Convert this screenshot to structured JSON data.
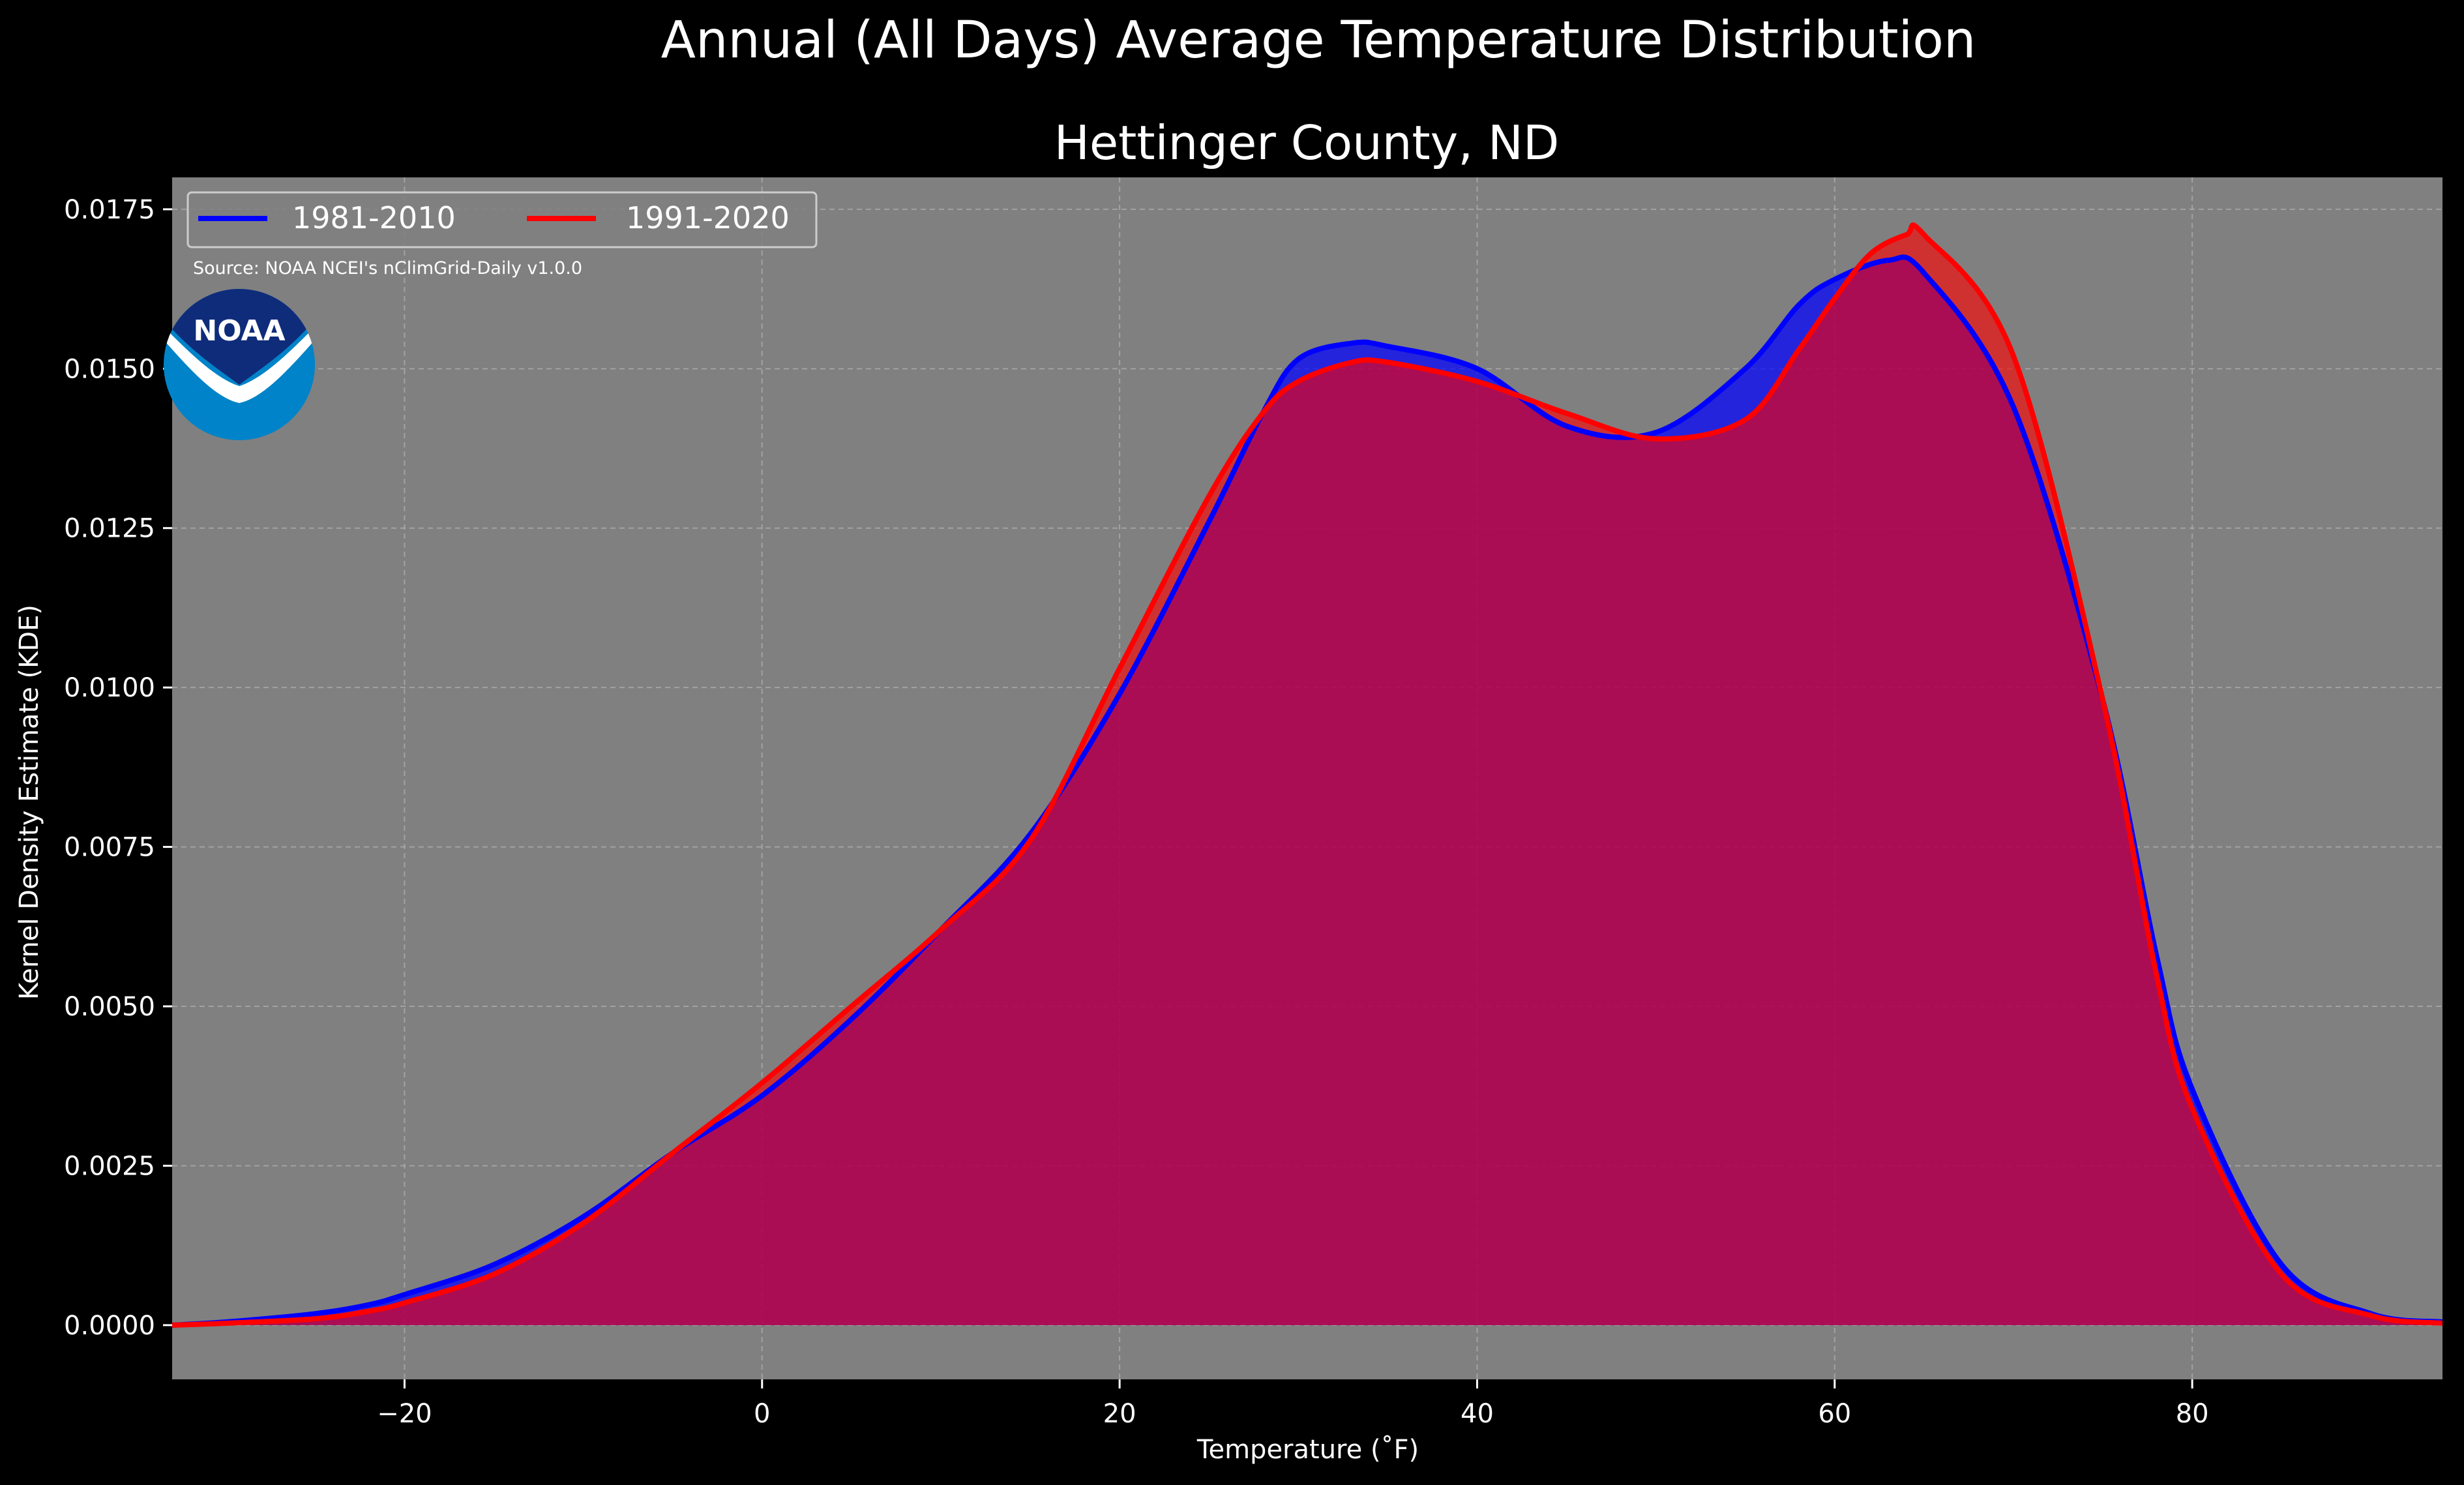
{
  "suptitle": "Annual (All Days) Average Temperature Distribution",
  "source_note": "Source: NOAA NCEI's nClimGrid-Daily v1.0.0",
  "logo": {
    "icon": "noaa-logo",
    "text": "NOAA"
  },
  "colors": {
    "background": "#000000",
    "axes_bg": "#808080",
    "grid": "#b0b0b0",
    "series_1981": "#0000ff",
    "series_1991": "#ff0000",
    "overlap": "#9e1e5e",
    "logo_dark": "#0f2c7a",
    "logo_light": "#0083c8"
  },
  "chart_data": {
    "type": "area",
    "title": "Hettinger County, ND",
    "xlabel": "Temperature ($^\\circ$F)",
    "xlabel_display": "Temperature (˚F)",
    "ylabel": "Kernel Density Estimate (KDE)",
    "xlim": [
      -33,
      94
    ],
    "ylim": [
      -0.00085,
      0.018
    ],
    "xticks": [
      -20,
      0,
      20,
      40,
      60,
      80
    ],
    "xtick_labels": [
      "−20",
      "0",
      "20",
      "40",
      "60",
      "80"
    ],
    "yticks": [
      0.0,
      0.0025,
      0.005,
      0.0075,
      0.01,
      0.0125,
      0.015,
      0.0175
    ],
    "ytick_labels": [
      "0.0000",
      "0.0025",
      "0.0050",
      "0.0075",
      "0.0100",
      "0.0125",
      "0.0150",
      "0.0175"
    ],
    "grid": true,
    "legend_position": "top-left",
    "series": [
      {
        "name": "1981-2010",
        "color": "#0000ff",
        "x": [
          -33,
          -30,
          -25,
          -22,
          -20,
          -15,
          -10,
          -5,
          0,
          5,
          10,
          15,
          20,
          25,
          28,
          30,
          33,
          35,
          40,
          45,
          50,
          55,
          58,
          60,
          63,
          65,
          70,
          75,
          78,
          80,
          85,
          90,
          94
        ],
        "y": [
          0.0,
          5e-05,
          0.00018,
          0.00032,
          0.00048,
          0.00095,
          0.0017,
          0.0027,
          0.0036,
          0.0048,
          0.0062,
          0.0077,
          0.0099,
          0.0126,
          0.0143,
          0.01515,
          0.0154,
          0.01535,
          0.015,
          0.0141,
          0.014,
          0.015,
          0.016,
          0.0164,
          0.0167,
          0.0165,
          0.0144,
          0.0098,
          0.0058,
          0.0037,
          0.00095,
          0.00018,
          5e-05
        ]
      },
      {
        "name": "1991-2020",
        "color": "#ff0000",
        "x": [
          -33,
          -30,
          -25,
          -22,
          -20,
          -15,
          -10,
          -5,
          0,
          5,
          10,
          15,
          20,
          25,
          28,
          30,
          33,
          35,
          40,
          45,
          50,
          55,
          58,
          60,
          62,
          64,
          65,
          70,
          75,
          78,
          80,
          85,
          90,
          94
        ],
        "y": [
          0.0,
          3e-05,
          0.0001,
          0.00022,
          0.00035,
          0.0008,
          0.0016,
          0.0027,
          0.0038,
          0.005,
          0.0062,
          0.0076,
          0.0103,
          0.013,
          0.0143,
          0.0148,
          0.0151,
          0.0151,
          0.0148,
          0.0143,
          0.0139,
          0.0142,
          0.0153,
          0.0161,
          0.0168,
          0.0171,
          0.0171,
          0.0152,
          0.0098,
          0.0055,
          0.0034,
          0.0008,
          0.00015,
          3e-05
        ]
      }
    ]
  }
}
